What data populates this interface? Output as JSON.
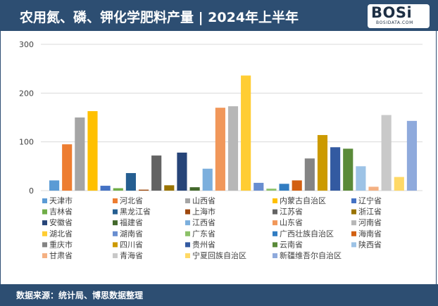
{
  "header": {
    "title": "农用氮、磷、钾化学肥料产量 | 2024年上半年"
  },
  "logo": {
    "main": "BOSi",
    "sub": "BOSIDATA.COM"
  },
  "footer": {
    "source": "数据来源：统计局、博思数据整理"
  },
  "chart_data": {
    "type": "bar",
    "title": "",
    "xlabel": "",
    "ylabel": "",
    "ylim": [
      0,
      300
    ],
    "yticks": [
      0,
      100,
      200,
      300
    ],
    "grid": true,
    "legend_position": "bottom",
    "series": [
      {
        "name": "天津市",
        "value": 21,
        "color": "#5b9bd5"
      },
      {
        "name": "河北省",
        "value": 95,
        "color": "#ed7d31"
      },
      {
        "name": "山西省",
        "value": 150,
        "color": "#a5a5a5"
      },
      {
        "name": "内蒙古自治区",
        "value": 163,
        "color": "#ffc000"
      },
      {
        "name": "辽宁省",
        "value": 10,
        "color": "#4472c4"
      },
      {
        "name": "吉林省",
        "value": 5,
        "color": "#70ad47"
      },
      {
        "name": "黑龙江省",
        "value": 36,
        "color": "#255e91"
      },
      {
        "name": "上海市",
        "value": 2,
        "color": "#9e480e"
      },
      {
        "name": "江苏省",
        "value": 72,
        "color": "#636363"
      },
      {
        "name": "浙江省",
        "value": 11,
        "color": "#997300"
      },
      {
        "name": "安徽省",
        "value": 78,
        "color": "#264478"
      },
      {
        "name": "福建省",
        "value": 7,
        "color": "#43682b"
      },
      {
        "name": "江西省",
        "value": 45,
        "color": "#7cafdd"
      },
      {
        "name": "山东省",
        "value": 170,
        "color": "#f1975a"
      },
      {
        "name": "河南省",
        "value": 173,
        "color": "#b7b7b7"
      },
      {
        "name": "湖北省",
        "value": 236,
        "color": "#ffcd33"
      },
      {
        "name": "湖南省",
        "value": 16,
        "color": "#698ed0"
      },
      {
        "name": "广东省",
        "value": 4,
        "color": "#8cc168"
      },
      {
        "name": "广西壮族自治区",
        "value": 14,
        "color": "#327dc2"
      },
      {
        "name": "海南省",
        "value": 21,
        "color": "#d26012"
      },
      {
        "name": "重庆市",
        "value": 66,
        "color": "#848484"
      },
      {
        "name": "四川省",
        "value": 114,
        "color": "#cc9a00"
      },
      {
        "name": "贵州省",
        "value": 89,
        "color": "#335aa1"
      },
      {
        "name": "云南省",
        "value": 86,
        "color": "#5a8a39"
      },
      {
        "name": "陕西省",
        "value": 50,
        "color": "#9dc3e6"
      },
      {
        "name": "甘肃省",
        "value": 8,
        "color": "#f4b183"
      },
      {
        "name": "青海省",
        "value": 155,
        "color": "#c9c9c9"
      },
      {
        "name": "宁夏回族自治区",
        "value": 28,
        "color": "#ffd966"
      },
      {
        "name": "新疆维吾尔自治区",
        "value": 143,
        "color": "#8faadc"
      }
    ]
  }
}
